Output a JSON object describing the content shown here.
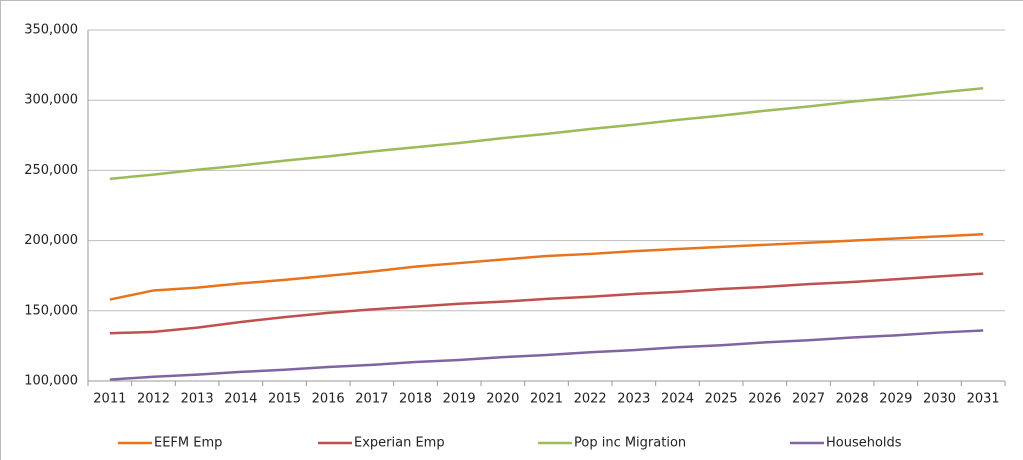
{
  "chart_data": {
    "type": "line",
    "categories": [
      "2011",
      "2012",
      "2013",
      "2014",
      "2015",
      "2016",
      "2017",
      "2018",
      "2019",
      "2020",
      "2021",
      "2022",
      "2023",
      "2024",
      "2025",
      "2026",
      "2027",
      "2028",
      "2029",
      "2030",
      "2031"
    ],
    "series": [
      {
        "name": "EEFM Emp",
        "color": "#e8731a",
        "values": [
          158000,
          164500,
          166500,
          169500,
          172000,
          175000,
          178000,
          181500,
          184000,
          186500,
          189000,
          190500,
          192500,
          194000,
          195500,
          197000,
          198500,
          200000,
          201500,
          203000,
          204500
        ]
      },
      {
        "name": "Experian Emp",
        "color": "#c0504d",
        "values": [
          134000,
          135000,
          138000,
          142000,
          145500,
          148500,
          151000,
          153000,
          155000,
          156500,
          158500,
          160000,
          162000,
          163500,
          165500,
          167000,
          169000,
          170500,
          172500,
          174500,
          176500
        ]
      },
      {
        "name": "Pop inc Migration",
        "color": "#9bbb59",
        "values": [
          244000,
          247000,
          250500,
          253500,
          257000,
          260000,
          263500,
          266500,
          269500,
          273000,
          276000,
          279500,
          282500,
          286000,
          289000,
          292500,
          295500,
          299000,
          302000,
          305500,
          308500
        ]
      },
      {
        "name": "Households",
        "color": "#8064a2",
        "values": [
          101000,
          103000,
          104500,
          106500,
          108000,
          110000,
          111500,
          113500,
          115000,
          117000,
          118500,
          120500,
          122000,
          124000,
          125500,
          127500,
          129000,
          131000,
          132500,
          134500,
          136000
        ]
      }
    ],
    "ylim": [
      100000,
      350000
    ],
    "yticks": [
      {
        "value": 100000,
        "label": "100,000"
      },
      {
        "value": 150000,
        "label": "150,000"
      },
      {
        "value": 200000,
        "label": "200,000"
      },
      {
        "value": 250000,
        "label": "250,000"
      },
      {
        "value": 300000,
        "label": "300,000"
      },
      {
        "value": 350000,
        "label": "350,000"
      }
    ],
    "grid": true,
    "legend": "bottom"
  }
}
